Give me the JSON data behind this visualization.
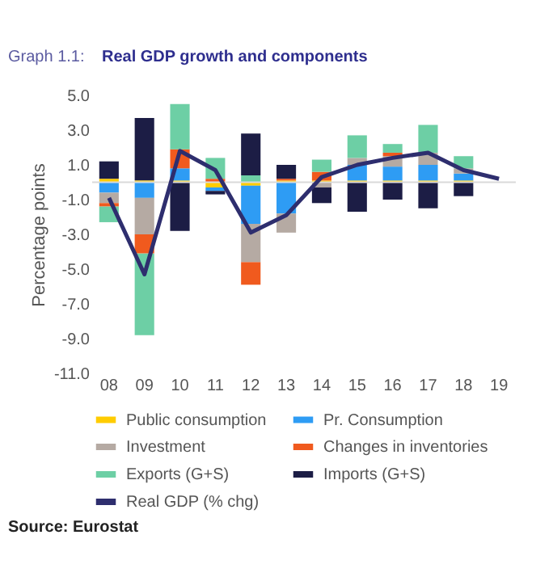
{
  "chart_data": {
    "type": "bar",
    "stacked": true,
    "title": "Real GDP growth and components",
    "subtitle": "Graph 1.1:",
    "ylabel": "Percentage points",
    "categories": [
      "08",
      "09",
      "10",
      "11",
      "12",
      "13",
      "14",
      "15",
      "16",
      "17",
      "18",
      "19"
    ],
    "ylim": [
      -11,
      5
    ],
    "yticks": [
      {
        "value": 5,
        "label": "5.0"
      },
      {
        "value": 3,
        "label": "3.0"
      },
      {
        "value": 1,
        "label": "1.0"
      },
      {
        "value": -1,
        "label": "-1.0"
      },
      {
        "value": -3,
        "label": "-3.0"
      },
      {
        "value": -5,
        "label": "-5.0"
      },
      {
        "value": -7,
        "label": "-7.0"
      },
      {
        "value": -9,
        "label": "-9.0"
      },
      {
        "value": -11,
        "label": "-11.0"
      }
    ],
    "series": [
      {
        "name": "Public consumption",
        "color": "#ffcc00",
        "values": [
          0.2,
          0.1,
          0.1,
          -0.3,
          -0.2,
          0.1,
          0.1,
          0.1,
          0.1,
          0.1,
          0.1,
          null
        ]
      },
      {
        "name": "Pr. Consumption",
        "color": "#2e9cf4",
        "values": [
          -0.6,
          -0.9,
          0.7,
          -0.2,
          -2.2,
          -1.8,
          null,
          0.9,
          0.8,
          0.9,
          0.4,
          null
        ]
      },
      {
        "name": "Investment",
        "color": "#b5aaa3",
        "values": [
          -0.6,
          -2.1,
          null,
          null,
          -2.2,
          -1.1,
          -0.3,
          0.4,
          0.6,
          0.7,
          0.3,
          null
        ]
      },
      {
        "name": "Changes in inventories",
        "color": "#f05a1e",
        "values": [
          -0.2,
          -1.1,
          1.1,
          0.2,
          -1.3,
          0.1,
          0.5,
          null,
          0.2,
          null,
          null,
          null
        ]
      },
      {
        "name": "Exports (G+S)",
        "color": "#6dcfa5",
        "values": [
          -0.9,
          -4.7,
          2.6,
          1.2,
          0.4,
          null,
          0.7,
          1.3,
          0.5,
          1.6,
          0.7,
          null
        ]
      },
      {
        "name": "Imports (G+S)",
        "color": "#1c1d45",
        "values": [
          1.0,
          3.6,
          -2.8,
          -0.2,
          2.4,
          0.8,
          -0.9,
          -1.7,
          -1.0,
          -1.5,
          -0.8,
          null
        ]
      },
      {
        "name": "Real GDP (% chg)",
        "color": "#2e2e6e",
        "type": "line",
        "values": [
          -0.9,
          -5.3,
          1.8,
          0.7,
          -2.9,
          -1.9,
          0.3,
          1.0,
          1.4,
          1.7,
          0.7,
          0.2
        ]
      }
    ],
    "ref_lines": [
      {
        "axis": "y",
        "value": 0,
        "color": "#d9d9d9"
      }
    ],
    "grid": false,
    "legend": "bottom",
    "annotations": [
      "Source: Eurostat"
    ]
  }
}
